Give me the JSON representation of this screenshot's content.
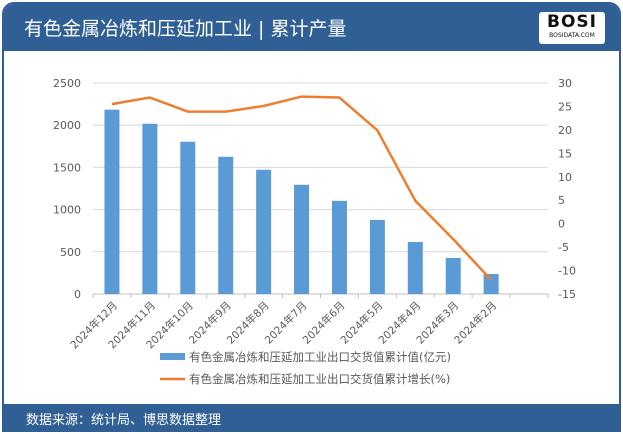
{
  "header": {
    "title": "有色金属冶炼和压延加工业 | 累计产量",
    "logo_text": "BOSI",
    "logo_sub": "BOSIDATA.COM"
  },
  "footer": {
    "source": "数据来源：统计局、博思数据整理"
  },
  "colors": {
    "bar": "#5b9bd5",
    "line": "#ed7d31",
    "frame": "#2f5f94"
  },
  "chart_data": {
    "type": "bar+line",
    "categories": [
      "2024年12月",
      "2024年11月",
      "2024年10月",
      "2024年9月",
      "2024年8月",
      "2024年7月",
      "2024年6月",
      "2024年5月",
      "2024年4月",
      "2024年3月",
      "2024年2月"
    ],
    "series": [
      {
        "name": "有色金属冶炼和压延加工业出口交货值累计值(亿元)",
        "type": "bar",
        "axis": "left",
        "values": [
          2184,
          2017,
          1804,
          1626,
          1472,
          1294,
          1104,
          878,
          617,
          427,
          237
        ]
      },
      {
        "name": "有色金属冶炼和压延加工业出口交货值累计增长(%)",
        "type": "line",
        "axis": "right",
        "values": [
          25.5,
          26.9,
          23.9,
          23.9,
          25.1,
          27.1,
          26.9,
          19.9,
          4.9,
          -3.3,
          -12.0
        ]
      }
    ],
    "y_left": {
      "range": [
        0,
        2500
      ],
      "ticks": [
        "0",
        "500",
        "1000",
        "1500",
        "2000",
        "2500"
      ]
    },
    "y_right": {
      "range": [
        -15,
        30
      ],
      "ticks": [
        "-15",
        "-10",
        "-5",
        "0",
        "5",
        "10",
        "15",
        "20",
        "25",
        "30"
      ]
    },
    "grid": true,
    "legend": "bottom"
  }
}
